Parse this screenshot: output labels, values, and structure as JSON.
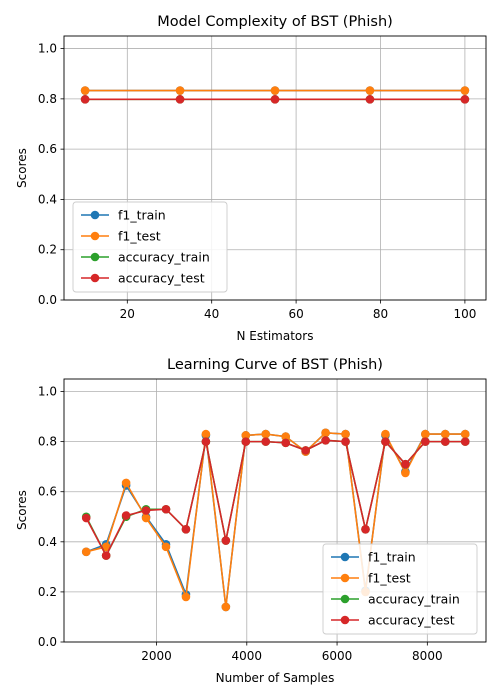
{
  "chart_data": [
    {
      "type": "line",
      "title": "Model Complexity of BST (Phish)",
      "xlabel": "N Estimators",
      "ylabel": "Scores",
      "xlim": [
        5,
        105
      ],
      "ylim": [
        0.0,
        1.05
      ],
      "xticks": [
        20,
        40,
        60,
        80,
        100
      ],
      "yticks": [
        0.0,
        0.2,
        0.4,
        0.6,
        0.8,
        1.0
      ],
      "grid": true,
      "legend_position": "lower-left",
      "x": [
        10,
        32.5,
        55,
        77.5,
        100
      ],
      "series": [
        {
          "name": "f1_train",
          "color": "#1f77b4",
          "values": [
            0.833,
            0.833,
            0.833,
            0.833,
            0.833
          ]
        },
        {
          "name": "f1_test",
          "color": "#ff7f0e",
          "values": [
            0.833,
            0.833,
            0.833,
            0.833,
            0.833
          ]
        },
        {
          "name": "accuracy_train",
          "color": "#2ca02c",
          "values": [
            0.798,
            0.798,
            0.798,
            0.798,
            0.798
          ]
        },
        {
          "name": "accuracy_test",
          "color": "#d62728",
          "values": [
            0.798,
            0.798,
            0.798,
            0.798,
            0.798
          ]
        }
      ]
    },
    {
      "type": "line",
      "title": "Learning Curve of BST (Phish)",
      "xlabel": "Number of Samples",
      "ylabel": "Scores",
      "xlim": [
        -50,
        9300
      ],
      "ylim": [
        0.0,
        1.05
      ],
      "xticks": [
        2000,
        4000,
        6000,
        8000
      ],
      "yticks": [
        0.0,
        0.2,
        0.4,
        0.6,
        0.8,
        1.0
      ],
      "grid": true,
      "legend_position": "lower-right",
      "x": [
        442,
        884,
        1326,
        1768,
        2210,
        2652,
        3094,
        3536,
        3978,
        4420,
        4862,
        5304,
        5746,
        6188,
        6630,
        7072,
        7514,
        7956,
        8398,
        8840
      ],
      "series": [
        {
          "name": "f1_train",
          "color": "#1f77b4",
          "values": [
            0.36,
            0.39,
            0.625,
            0.5,
            0.39,
            0.19,
            0.825,
            0.14,
            0.825,
            0.83,
            0.82,
            0.76,
            0.835,
            0.83,
            0.205,
            0.825,
            0.68,
            0.83,
            0.83,
            0.83
          ]
        },
        {
          "name": "f1_test",
          "color": "#ff7f0e",
          "values": [
            0.36,
            0.38,
            0.635,
            0.495,
            0.38,
            0.18,
            0.83,
            0.14,
            0.825,
            0.83,
            0.82,
            0.76,
            0.835,
            0.83,
            0.2,
            0.83,
            0.675,
            0.83,
            0.83,
            0.83
          ]
        },
        {
          "name": "accuracy_train",
          "color": "#2ca02c",
          "values": [
            0.5,
            0.345,
            0.5,
            0.53,
            0.53,
            0.45,
            0.8,
            0.405,
            0.8,
            0.8,
            0.795,
            0.765,
            0.805,
            0.8,
            0.45,
            0.8,
            0.71,
            0.8,
            0.8,
            0.8
          ]
        },
        {
          "name": "accuracy_test",
          "color": "#d62728",
          "values": [
            0.495,
            0.345,
            0.505,
            0.525,
            0.53,
            0.45,
            0.8,
            0.405,
            0.8,
            0.8,
            0.795,
            0.765,
            0.805,
            0.8,
            0.45,
            0.8,
            0.71,
            0.8,
            0.8,
            0.8
          ]
        }
      ]
    }
  ]
}
